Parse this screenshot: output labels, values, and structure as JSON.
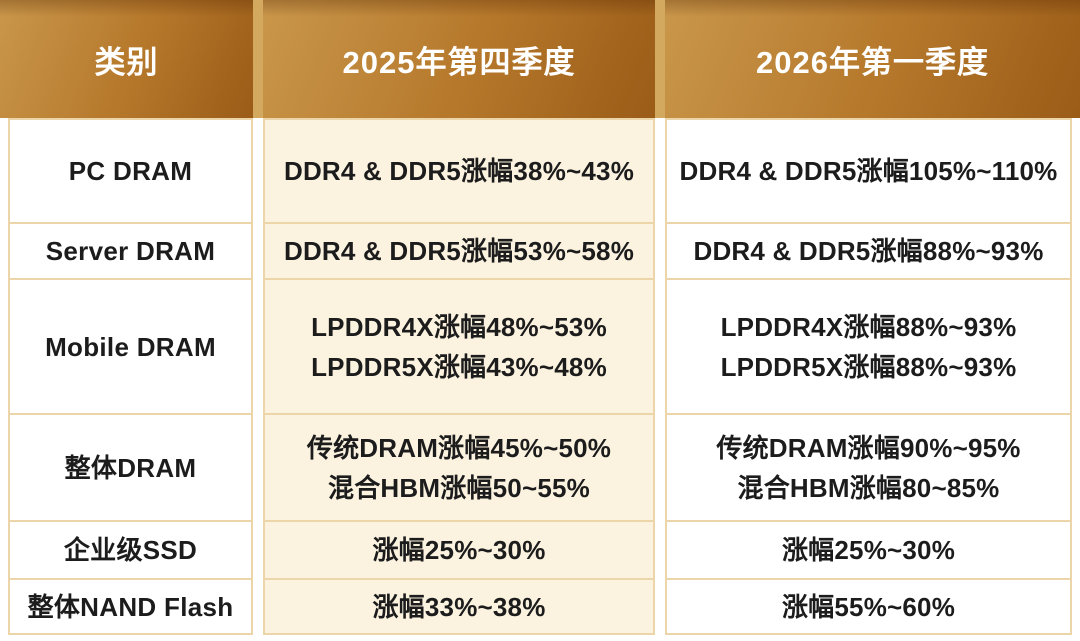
{
  "theme": {
    "header-grad-a": "#c9974b",
    "header-grad-b": "#9a5c17",
    "header-gap-bg": "#d3a95f",
    "cream-bg": "#fbf3e0",
    "line-color": "#ecd5a9",
    "text-color": "#1c1c1c",
    "header-text-color": "#ffffff",
    "page-bg": "#ffffff"
  },
  "chart_data": {
    "type": "table",
    "columns": [
      "类别",
      "2025年第四季度",
      "2026年第一季度"
    ],
    "rows": [
      {
        "category": "PC DRAM",
        "q4_2025": [
          "DDR4 & DDR5涨幅38%~43%"
        ],
        "q1_2026": [
          "DDR4 & DDR5涨幅105%~110%"
        ]
      },
      {
        "category": "Server DRAM",
        "q4_2025": [
          "DDR4 & DDR5涨幅53%~58%"
        ],
        "q1_2026": [
          "DDR4 & DDR5涨幅88%~93%"
        ]
      },
      {
        "category": "Mobile DRAM",
        "q4_2025": [
          "LPDDR4X涨幅48%~53%",
          "LPDDR5X涨幅43%~48%"
        ],
        "q1_2026": [
          "LPDDR4X涨幅88%~93%",
          "LPDDR5X涨幅88%~93%"
        ]
      },
      {
        "category": "整体DRAM",
        "q4_2025": [
          "传统DRAM涨幅45%~50%",
          "混合HBM涨幅50~55%"
        ],
        "q1_2026": [
          "传统DRAM涨幅90%~95%",
          "混合HBM涨幅80~85%"
        ]
      },
      {
        "category": "企业级SSD",
        "q4_2025": [
          "涨幅25%~30%"
        ],
        "q1_2026": [
          "涨幅25%~30%"
        ]
      },
      {
        "category": "整体NAND Flash",
        "q4_2025": [
          "涨幅33%~38%"
        ],
        "q1_2026": [
          "涨幅55%~60%"
        ]
      }
    ]
  }
}
